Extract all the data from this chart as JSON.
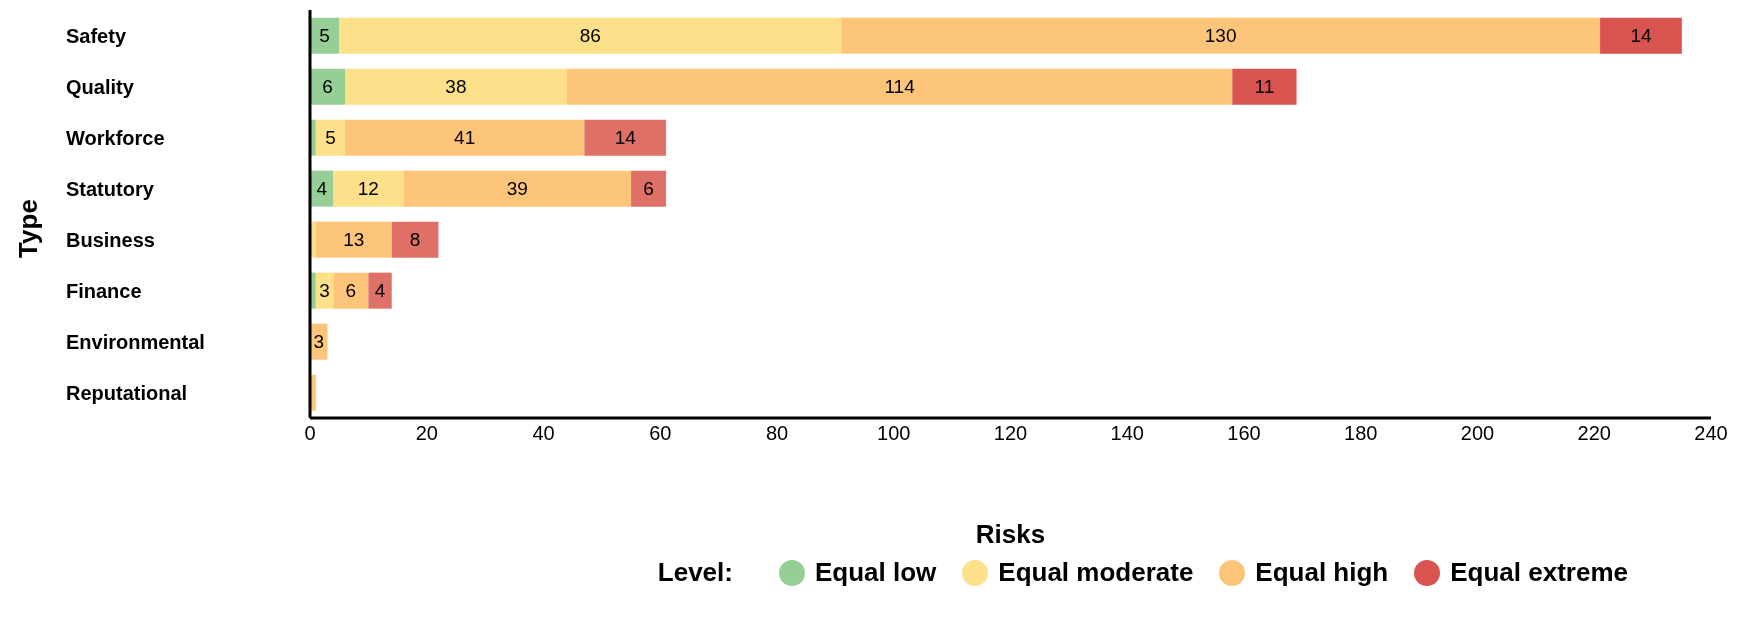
{
  "chart_data": {
    "type": "bar",
    "orientation": "horizontal",
    "stacked": true,
    "xlabel": "Risks",
    "ylabel": "Type",
    "legend_title": "Level:",
    "legend": "bottom",
    "grid": false,
    "categories": [
      "Safety",
      "Quality",
      "Workforce",
      "Statutory",
      "Business",
      "Finance",
      "Environmental",
      "Reputational"
    ],
    "xlim": [
      0,
      240
    ],
    "xticks": [
      0,
      20,
      40,
      60,
      80,
      100,
      120,
      140,
      160,
      180,
      200,
      220,
      240
    ],
    "series": [
      {
        "name": "Equal low",
        "color": "#95cf95",
        "values": [
          5,
          6,
          1,
          4,
          null,
          1,
          null,
          null
        ],
        "value_labels": [
          "5",
          "6",
          null,
          "4",
          null,
          null,
          null,
          null
        ]
      },
      {
        "name": "Equal moderate",
        "color": "#fde08a",
        "values": [
          86,
          38,
          5,
          12,
          1,
          3,
          null,
          null
        ],
        "value_labels": [
          "86",
          "38",
          "5",
          "12",
          null,
          "3",
          null,
          null
        ]
      },
      {
        "name": "Equal high",
        "color": "#fdc57a",
        "values": [
          130,
          114,
          41,
          39,
          13,
          6,
          3,
          1
        ],
        "value_labels": [
          "130",
          "114",
          "41",
          "39",
          "13",
          "6",
          "3",
          null
        ]
      },
      {
        "name": "Equal extreme",
        "color": "#d9534f",
        "colors": [
          "#d9534f",
          "#d9534f",
          "#de7068",
          "#de7068",
          "#de7068",
          "#de7068",
          "#de7068",
          "#de7068"
        ],
        "values": [
          14,
          11,
          14,
          6,
          8,
          4,
          null,
          null
        ],
        "value_labels": [
          "14",
          "11",
          "14",
          "6",
          "8",
          "4",
          null,
          null
        ]
      }
    ]
  }
}
